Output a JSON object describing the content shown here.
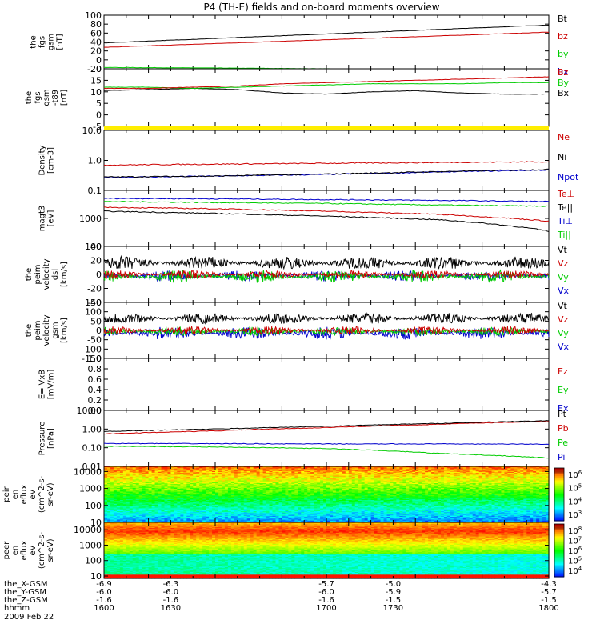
{
  "title": "P4 (TH-E) fields and on-board moments overview",
  "chart_data": [
    {
      "type": "line",
      "ylabel_lines": [
        "the",
        "fgs",
        "gsm",
        "[nT]"
      ],
      "ylim": [
        -20,
        100
      ],
      "yticks": [
        "100",
        "80",
        "60",
        "40",
        "20",
        "0",
        "-20"
      ],
      "series": [
        {
          "name": "Bt",
          "color": "#000000",
          "x": [
            1600,
            1800
          ],
          "values": [
            38,
            78
          ]
        },
        {
          "name": "bz",
          "color": "#cc0000",
          "x": [
            1600,
            1800
          ],
          "values": [
            28,
            62
          ]
        },
        {
          "name": "by",
          "color": "#00cc00",
          "x": [
            1600,
            1640,
            1700,
            1760,
            1800
          ],
          "values": [
            -17,
            -18,
            -20,
            -24,
            -26
          ]
        },
        {
          "name": "bx",
          "color": "#0000cc",
          "x": [
            1600,
            1650,
            1700,
            1750,
            1800
          ],
          "values": [
            -20,
            -22,
            -24,
            -27,
            -29
          ]
        }
      ]
    },
    {
      "type": "line",
      "ylabel_lines": [
        "the",
        "fgs",
        "gsm",
        "-t89",
        "[nT]"
      ],
      "ylim": [
        -5,
        20
      ],
      "yticks": [
        "20",
        "15",
        "10",
        "5",
        "0",
        "-5"
      ],
      "series": [
        {
          "name": "Bz",
          "color": "#cc0000",
          "x": [
            1600,
            1620,
            1640,
            1660,
            1680,
            1700,
            1720,
            1740,
            1760,
            1780,
            1800
          ],
          "values": [
            11.5,
            11.5,
            12,
            12.5,
            13.5,
            14,
            14.5,
            15,
            15.5,
            16,
            16.5
          ]
        },
        {
          "name": "By",
          "color": "#00cc00",
          "x": [
            1600,
            1620,
            1640,
            1660,
            1680,
            1700,
            1720,
            1740,
            1760,
            1780,
            1800
          ],
          "values": [
            12,
            12,
            11.5,
            12,
            12.5,
            13,
            13.5,
            13.5,
            13.5,
            14,
            14
          ]
        },
        {
          "name": "Bx",
          "color": "#000000",
          "x": [
            1600,
            1620,
            1640,
            1660,
            1680,
            1700,
            1720,
            1740,
            1760,
            1780,
            1800
          ],
          "values": [
            10.5,
            11,
            11.5,
            11,
            9.5,
            9,
            10,
            10.5,
            9.5,
            9,
            9
          ]
        }
      ]
    },
    {
      "type": "line",
      "ylabel_lines": [
        "Density",
        "[cm-3]"
      ],
      "yscale": "log",
      "ylim": [
        0.1,
        10
      ],
      "yticks": [
        "10.0",
        "1.0",
        "0.1"
      ],
      "series": [
        {
          "name": "Ne",
          "color": "#cc0000",
          "x": [
            1600,
            1650,
            1700,
            1750,
            1800
          ],
          "values": [
            0.7,
            0.75,
            0.8,
            0.85,
            0.9
          ]
        },
        {
          "name": "Ni",
          "color": "#000000",
          "x": [
            1600,
            1650,
            1700,
            1750,
            1800
          ],
          "values": [
            0.28,
            0.3,
            0.35,
            0.42,
            0.5
          ]
        },
        {
          "name": "Npot",
          "color": "#0000cc",
          "x": [
            1600,
            1650,
            1700,
            1750,
            1800
          ],
          "values": [
            0.27,
            0.3,
            0.34,
            0.41,
            0.48
          ]
        }
      ]
    },
    {
      "type": "line",
      "ylabel_lines": [
        "magt3",
        "[eV]"
      ],
      "yscale": "log",
      "ylim": [
        100,
        10000
      ],
      "yticks": [
        "1000",
        "100"
      ],
      "series": [
        {
          "name": "Te⊥",
          "color": "#cc0000",
          "x": [
            1600,
            1650,
            1700,
            1750,
            1800
          ],
          "values": [
            2500,
            2200,
            1800,
            1400,
            800
          ]
        },
        {
          "name": "Te||",
          "color": "#000000",
          "x": [
            1600,
            1650,
            1700,
            1750,
            1800
          ],
          "values": [
            1800,
            1500,
            1200,
            900,
            350
          ]
        },
        {
          "name": "Ti⊥",
          "color": "#0000cc",
          "x": [
            1600,
            1650,
            1700,
            1750,
            1800
          ],
          "values": [
            5200,
            5000,
            4700,
            4400,
            4000
          ]
        },
        {
          "name": "Ti||",
          "color": "#00cc00",
          "x": [
            1600,
            1650,
            1700,
            1750,
            1800
          ],
          "values": [
            4000,
            3700,
            3400,
            3000,
            2700
          ]
        }
      ]
    },
    {
      "type": "line",
      "ylabel_lines": [
        "the",
        "peim",
        "velocity",
        "dsl",
        "[km/s]"
      ],
      "ylim": [
        -40,
        40
      ],
      "yticks": [
        "40",
        "20",
        "0",
        "-20",
        "-40"
      ],
      "series": [
        {
          "name": "Vt",
          "color": "#000000",
          "x": [
            1600,
            1800
          ],
          "values": [
            8,
            8
          ]
        },
        {
          "name": "Vz",
          "color": "#cc0000",
          "x": [
            1600,
            1800
          ],
          "values": [
            0,
            0
          ]
        },
        {
          "name": "Vy",
          "color": "#00cc00",
          "x": [
            1600,
            1800
          ],
          "values": [
            -3,
            -3
          ]
        },
        {
          "name": "Vx",
          "color": "#0000cc",
          "x": [
            1600,
            1800
          ],
          "values": [
            -2,
            -2
          ]
        }
      ]
    },
    {
      "type": "line",
      "ylabel_lines": [
        "the",
        "peim",
        "velocity",
        "gsm",
        "[km/s]"
      ],
      "ylim": [
        -150,
        150
      ],
      "yticks": [
        "150",
        "100",
        "50",
        "0",
        "-50",
        "-100",
        "-150"
      ],
      "series": [
        {
          "name": "Vt",
          "color": "#000000",
          "x": [
            1600,
            1800
          ],
          "values": [
            40,
            40
          ]
        },
        {
          "name": "Vz",
          "color": "#cc0000",
          "x": [
            1600,
            1800
          ],
          "values": [
            0,
            0
          ]
        },
        {
          "name": "Vy",
          "color": "#00cc00",
          "x": [
            1600,
            1800
          ],
          "values": [
            -5,
            -5
          ]
        },
        {
          "name": "Vx",
          "color": "#0000cc",
          "x": [
            1600,
            1800
          ],
          "values": [
            -15,
            -15
          ]
        }
      ]
    },
    {
      "type": "line",
      "ylabel_lines": [
        "E=-VxB",
        "[mV/m]"
      ],
      "ylim": [
        0,
        1
      ],
      "yticks": [
        "1.0",
        "0.8",
        "0.6",
        "0.4",
        "0.2",
        "0.0"
      ],
      "series": [
        {
          "name": "Ez",
          "color": "#cc0000",
          "x": [],
          "values": []
        },
        {
          "name": "Ey",
          "color": "#00cc00",
          "x": [],
          "values": []
        },
        {
          "name": "Ex",
          "color": "#0000cc",
          "x": [],
          "values": []
        }
      ]
    },
    {
      "type": "line",
      "ylabel_lines": [
        "Pressure",
        "[nPa]"
      ],
      "yscale": "log",
      "ylim": [
        0.01,
        10
      ],
      "yticks": [
        "10.00",
        "1.00",
        "0.10",
        "0.01"
      ],
      "series": [
        {
          "name": "Pt",
          "color": "#000000",
          "x": [
            1600,
            1650,
            1700,
            1750,
            1800
          ],
          "values": [
            0.75,
            1.0,
            1.4,
            2.0,
            2.8
          ]
        },
        {
          "name": "Pb",
          "color": "#cc0000",
          "x": [
            1600,
            1650,
            1700,
            1750,
            1800
          ],
          "values": [
            0.55,
            0.8,
            1.2,
            1.8,
            2.6
          ]
        },
        {
          "name": "Pe",
          "color": "#00cc00",
          "x": [
            1600,
            1650,
            1700,
            1750,
            1800
          ],
          "values": [
            0.12,
            0.11,
            0.09,
            0.05,
            0.028
          ]
        },
        {
          "name": "Pi",
          "color": "#0000cc",
          "x": [
            1600,
            1650,
            1700,
            1750,
            1800
          ],
          "values": [
            0.17,
            0.165,
            0.16,
            0.16,
            0.155
          ]
        }
      ]
    },
    {
      "type": "heatmap",
      "ylabel_lines": [
        "the",
        "peir",
        "en",
        "eflux",
        "eV",
        "(cm^2-s-",
        "sr-eV)"
      ],
      "yscale": "log",
      "ylim": [
        10,
        20000
      ],
      "yticks": [
        "10000",
        "1000",
        "100",
        "10"
      ],
      "colorbar_ticks": [
        "10^6",
        "10^5",
        "10^4",
        "10^3"
      ]
    },
    {
      "type": "heatmap",
      "ylabel_lines": [
        "the",
        "peer",
        "en",
        "eflux",
        "eV",
        "(cm^2-s-",
        "sr-eV)"
      ],
      "yscale": "log",
      "ylim": [
        7,
        30000
      ],
      "yticks": [
        "10000",
        "1000",
        "100",
        "10"
      ],
      "colorbar_ticks": [
        "10^8",
        "10^7",
        "10^6",
        "10^5",
        "10^4"
      ]
    }
  ],
  "footer": {
    "row_labels": [
      "the_X-GSM",
      "the_Y-GSM",
      "the_Z-GSM",
      "hhmm",
      "2009 Feb 22"
    ],
    "x_gsm": [
      "-6.9",
      "-6.3",
      "-5.7",
      "-5.0",
      "-4.3"
    ],
    "y_gsm": [
      "-6.0",
      "-6.0",
      "-6.0",
      "-5.9",
      "-5.7"
    ],
    "z_gsm": [
      "-1.6",
      "-1.6",
      "-1.6",
      "-1.5",
      "-1.5"
    ],
    "hhmm": [
      "1600",
      "1630",
      "1700",
      "1730",
      "1800"
    ]
  }
}
